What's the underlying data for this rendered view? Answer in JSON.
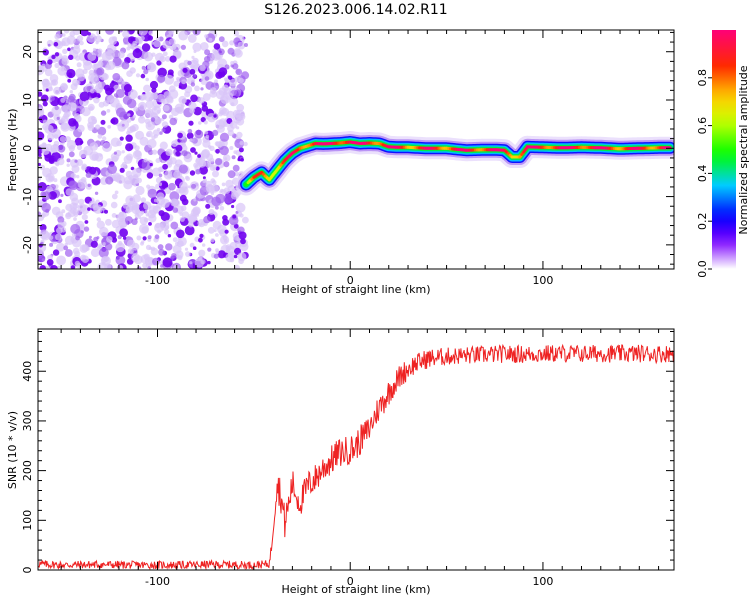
{
  "title": "S126.2023.006.14.02.R11",
  "chart_data": [
    {
      "type": "heatmap",
      "xlabel": "Height of straight line (km)",
      "ylabel": "Frequency (Hz)",
      "xlim": [
        -162,
        168
      ],
      "ylim": [
        -25,
        24.5
      ],
      "xticks": [
        -100,
        0,
        100
      ],
      "xtick_labels": [
        "-100",
        "0",
        "100"
      ],
      "yticks": [
        -20,
        -10,
        0,
        10,
        20
      ],
      "ytick_labels": [
        "-20",
        "-10",
        "0",
        "10",
        "20"
      ],
      "colorbar": {
        "label": "Normalized spectral amplitude",
        "range": [
          0,
          1
        ],
        "ticks": [
          0.0,
          0.2,
          0.4,
          0.6,
          0.8
        ],
        "tick_labels": [
          "0.0",
          "0.2",
          "0.4",
          "0.6",
          "0.8"
        ],
        "colormap": "rainbow"
      },
      "noise_region_x": [
        -162,
        -54
      ],
      "ridge": {
        "x": [
          -54,
          -50,
          -46,
          -42,
          -38,
          -34,
          -30,
          -26,
          -22,
          -18,
          -14,
          -10,
          -5,
          0,
          5,
          10,
          15,
          20,
          25,
          30,
          40,
          50,
          60,
          70,
          75,
          80,
          84,
          88,
          92,
          100,
          110,
          120,
          130,
          140,
          150,
          160,
          166
        ],
        "freq": [
          -7.5,
          -6,
          -5,
          -6.5,
          -4.5,
          -2.5,
          -1,
          0,
          0.5,
          1,
          0.9,
          1,
          1.1,
          1.3,
          1,
          1.1,
          1,
          0.3,
          0.2,
          0.2,
          0,
          0,
          -0.4,
          -0.3,
          -0.3,
          -0.4,
          -1.8,
          -1.8,
          0.3,
          0.2,
          0.1,
          0.2,
          0.1,
          -0.1,
          0,
          0.1,
          0.1
        ],
        "amplitude": [
          0.5,
          0.7,
          0.8,
          0.8,
          0.75,
          0.8,
          0.85,
          0.85,
          0.9,
          0.92,
          0.92,
          0.95,
          0.95,
          0.95,
          0.95,
          0.93,
          0.9,
          0.9,
          0.88,
          0.86,
          0.85,
          0.88,
          0.9,
          0.9,
          0.92,
          0.9,
          0.85,
          0.85,
          0.9,
          0.9,
          0.92,
          0.92,
          0.9,
          0.88,
          0.85,
          0.9,
          0.95
        ]
      }
    },
    {
      "type": "line",
      "xlabel": "Height of straight line (km)",
      "ylabel": "SNR (10 * v/v)",
      "xlim": [
        -162,
        168
      ],
      "ylim": [
        0,
        485
      ],
      "xticks": [
        -100,
        0,
        100
      ],
      "xtick_labels": [
        "-100",
        "0",
        "100"
      ],
      "yticks": [
        0,
        100,
        200,
        300,
        400
      ],
      "ytick_labels": [
        "0",
        "100",
        "200",
        "300",
        "400"
      ],
      "series": [
        {
          "color": "#ee2222",
          "x": [
            -162,
            -150,
            -130,
            -110,
            -90,
            -70,
            -50,
            -42,
            -41,
            -40,
            -38,
            -36,
            -34,
            -32,
            -30,
            -28,
            -26,
            -22,
            -18,
            -14,
            -10,
            -6,
            -2,
            2,
            6,
            10,
            14,
            18,
            22,
            26,
            30,
            34,
            40,
            50,
            60,
            70,
            80,
            90,
            100,
            110,
            120,
            130,
            140,
            150,
            160,
            168
          ],
          "y": [
            12,
            10,
            11,
            10,
            10,
            11,
            10,
            12,
            40,
            90,
            180,
            150,
            95,
            130,
            175,
            150,
            135,
            170,
            185,
            205,
            220,
            235,
            240,
            245,
            265,
            285,
            320,
            345,
            370,
            390,
            405,
            415,
            425,
            430,
            432,
            433,
            435,
            434,
            435,
            436,
            435,
            436,
            435,
            436,
            435,
            436
          ],
          "noise_amplitude": [
            8,
            8,
            8,
            8,
            8,
            8,
            8,
            8,
            15,
            25,
            35,
            35,
            35,
            35,
            30,
            30,
            30,
            30,
            30,
            30,
            30,
            30,
            30,
            30,
            30,
            28,
            28,
            28,
            25,
            25,
            22,
            20,
            20,
            18,
            18,
            18,
            18,
            18,
            18,
            18,
            18,
            18,
            18,
            18,
            18,
            18
          ]
        }
      ]
    }
  ]
}
